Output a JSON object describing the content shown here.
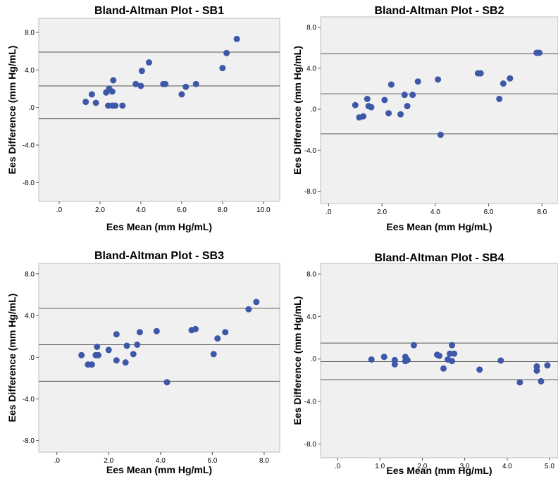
{
  "chart_data": [
    {
      "type": "scatter",
      "title": "Bland-Altman Plot - SB1",
      "xlabel": "Ees Mean (mm Hg/mL)",
      "ylabel": "Ees Difference (mm Hg/mL)",
      "xlim": [
        -1.0,
        10.8
      ],
      "ylim": [
        -10.0,
        9.5
      ],
      "x_ticks": [
        0,
        2,
        4,
        6,
        8,
        10
      ],
      "x_tick_labels": [
        ".0",
        "2.0",
        "4.0",
        "6.0",
        "8.0",
        "10.0"
      ],
      "y_ticks": [
        -8,
        -4,
        0,
        4,
        8
      ],
      "y_tick_labels": [
        "-8.0",
        "-4.0",
        ".0",
        "4.0",
        "8.0"
      ],
      "reference_lines": [
        5.9,
        2.3,
        -1.2
      ],
      "marker_color": "#3D58A8",
      "grid": false,
      "points": [
        [
          1.3,
          0.6
        ],
        [
          1.6,
          1.4
        ],
        [
          1.8,
          0.5
        ],
        [
          2.3,
          1.6
        ],
        [
          2.4,
          0.2
        ],
        [
          2.45,
          2.0
        ],
        [
          2.6,
          1.7
        ],
        [
          2.6,
          0.2
        ],
        [
          2.65,
          2.9
        ],
        [
          2.75,
          0.2
        ],
        [
          3.1,
          0.2
        ],
        [
          3.75,
          2.5
        ],
        [
          4.0,
          2.3
        ],
        [
          4.05,
          3.9
        ],
        [
          4.4,
          4.8
        ],
        [
          5.1,
          2.5
        ],
        [
          5.2,
          2.5
        ],
        [
          6.0,
          1.4
        ],
        [
          6.2,
          2.2
        ],
        [
          6.7,
          2.5
        ],
        [
          8.0,
          4.2
        ],
        [
          8.2,
          5.8
        ],
        [
          8.7,
          7.3
        ]
      ]
    },
    {
      "type": "scatter",
      "title": "Bland-Altman Plot - SB2",
      "xlabel": "Ees Mean (mm Hg/mL)",
      "ylabel": "Ees Difference (mm Hg/mL)",
      "xlim": [
        -0.3,
        8.6
      ],
      "ylim": [
        -9.2,
        9.0
      ],
      "x_ticks": [
        0,
        2,
        4,
        6,
        8
      ],
      "x_tick_labels": [
        ".0",
        "2.0",
        "4.0",
        "6.0",
        "8.0"
      ],
      "y_ticks": [
        -8,
        -4,
        0,
        4,
        8
      ],
      "y_tick_labels": [
        "-8.0",
        "-4.0",
        ".0",
        "4.0",
        "8.0"
      ],
      "reference_lines": [
        5.4,
        1.5,
        -2.4
      ],
      "marker_color": "#3D58A8",
      "grid": false,
      "points": [
        [
          1.0,
          0.4
        ],
        [
          1.15,
          -0.8
        ],
        [
          1.3,
          -0.7
        ],
        [
          1.45,
          1.0
        ],
        [
          1.5,
          0.3
        ],
        [
          1.6,
          0.2
        ],
        [
          2.1,
          0.9
        ],
        [
          2.25,
          -0.4
        ],
        [
          2.35,
          2.4
        ],
        [
          2.7,
          -0.5
        ],
        [
          2.85,
          1.4
        ],
        [
          2.95,
          0.3
        ],
        [
          3.15,
          1.4
        ],
        [
          3.35,
          2.7
        ],
        [
          4.1,
          2.9
        ],
        [
          4.2,
          -2.5
        ],
        [
          5.6,
          3.5
        ],
        [
          5.7,
          3.5
        ],
        [
          6.4,
          1.0
        ],
        [
          6.55,
          2.5
        ],
        [
          6.8,
          3.0
        ],
        [
          7.8,
          5.5
        ],
        [
          7.9,
          5.5
        ]
      ]
    },
    {
      "type": "scatter",
      "title": "Bland-Altman Plot - SB3",
      "xlabel": "Ees Mean (mm Hg/mL)",
      "ylabel": "Ees Difference (mm Hg/mL)",
      "xlim": [
        -0.7,
        8.6
      ],
      "ylim": [
        -9.1,
        9.0
      ],
      "x_ticks": [
        0,
        2,
        4,
        6,
        8
      ],
      "x_tick_labels": [
        ".0",
        "2.0",
        "4.0",
        "6.0",
        "8.0"
      ],
      "y_ticks": [
        -8,
        -4,
        0,
        4,
        8
      ],
      "y_tick_labels": [
        "-8.0",
        "-4.0",
        ".0",
        "4.0",
        "8.0"
      ],
      "reference_lines": [
        4.7,
        1.2,
        -2.3
      ],
      "marker_color": "#3D58A8",
      "grid": false,
      "points": [
        [
          0.95,
          0.2
        ],
        [
          1.2,
          -0.7
        ],
        [
          1.35,
          -0.7
        ],
        [
          1.5,
          0.2
        ],
        [
          1.55,
          1.0
        ],
        [
          1.6,
          0.2
        ],
        [
          2.0,
          0.7
        ],
        [
          2.3,
          -0.3
        ],
        [
          2.3,
          2.2
        ],
        [
          2.65,
          -0.5
        ],
        [
          2.7,
          1.1
        ],
        [
          2.95,
          0.3
        ],
        [
          3.1,
          1.2
        ],
        [
          3.2,
          2.4
        ],
        [
          3.85,
          2.5
        ],
        [
          4.25,
          -2.4
        ],
        [
          5.2,
          2.6
        ],
        [
          5.35,
          2.7
        ],
        [
          6.05,
          0.3
        ],
        [
          6.2,
          1.8
        ],
        [
          6.5,
          2.4
        ],
        [
          7.4,
          4.6
        ],
        [
          7.7,
          5.3
        ]
      ]
    },
    {
      "type": "scatter",
      "title": "Bland-Altman Plot - SB4",
      "xlabel": "Ees Mean (mm Hg/mL)",
      "ylabel": "Ees Difference (mm Hg/mL)",
      "xlim": [
        -0.4,
        5.2
      ],
      "ylim": [
        -9.3,
        9.0
      ],
      "x_ticks": [
        0,
        1,
        2,
        3,
        4,
        5
      ],
      "x_tick_labels": [
        ".0",
        "1.0",
        "2.0",
        "3.0",
        "4.0",
        "5.0"
      ],
      "y_ticks": [
        -8,
        -4,
        0,
        4,
        8
      ],
      "y_tick_labels": [
        "-8.0",
        "-4.0",
        ".0",
        "4.0",
        "8.0"
      ],
      "reference_lines": [
        1.5,
        -0.25,
        -1.95
      ],
      "marker_color": "#3D58A8",
      "grid": false,
      "points": [
        [
          0.8,
          -0.05
        ],
        [
          1.1,
          0.2
        ],
        [
          1.35,
          -0.1
        ],
        [
          1.35,
          -0.5
        ],
        [
          1.6,
          0.2
        ],
        [
          1.6,
          -0.2
        ],
        [
          1.65,
          -0.1
        ],
        [
          1.8,
          1.3
        ],
        [
          2.35,
          0.4
        ],
        [
          2.4,
          0.3
        ],
        [
          2.5,
          -0.9
        ],
        [
          2.6,
          -0.05
        ],
        [
          2.65,
          0.5
        ],
        [
          2.7,
          1.3
        ],
        [
          2.7,
          -0.2
        ],
        [
          2.75,
          0.5
        ],
        [
          3.35,
          -1.0
        ],
        [
          3.85,
          -0.15
        ],
        [
          4.3,
          -2.2
        ],
        [
          4.7,
          -0.7
        ],
        [
          4.7,
          -1.1
        ],
        [
          4.8,
          -2.1
        ],
        [
          4.95,
          -0.6
        ]
      ]
    }
  ]
}
